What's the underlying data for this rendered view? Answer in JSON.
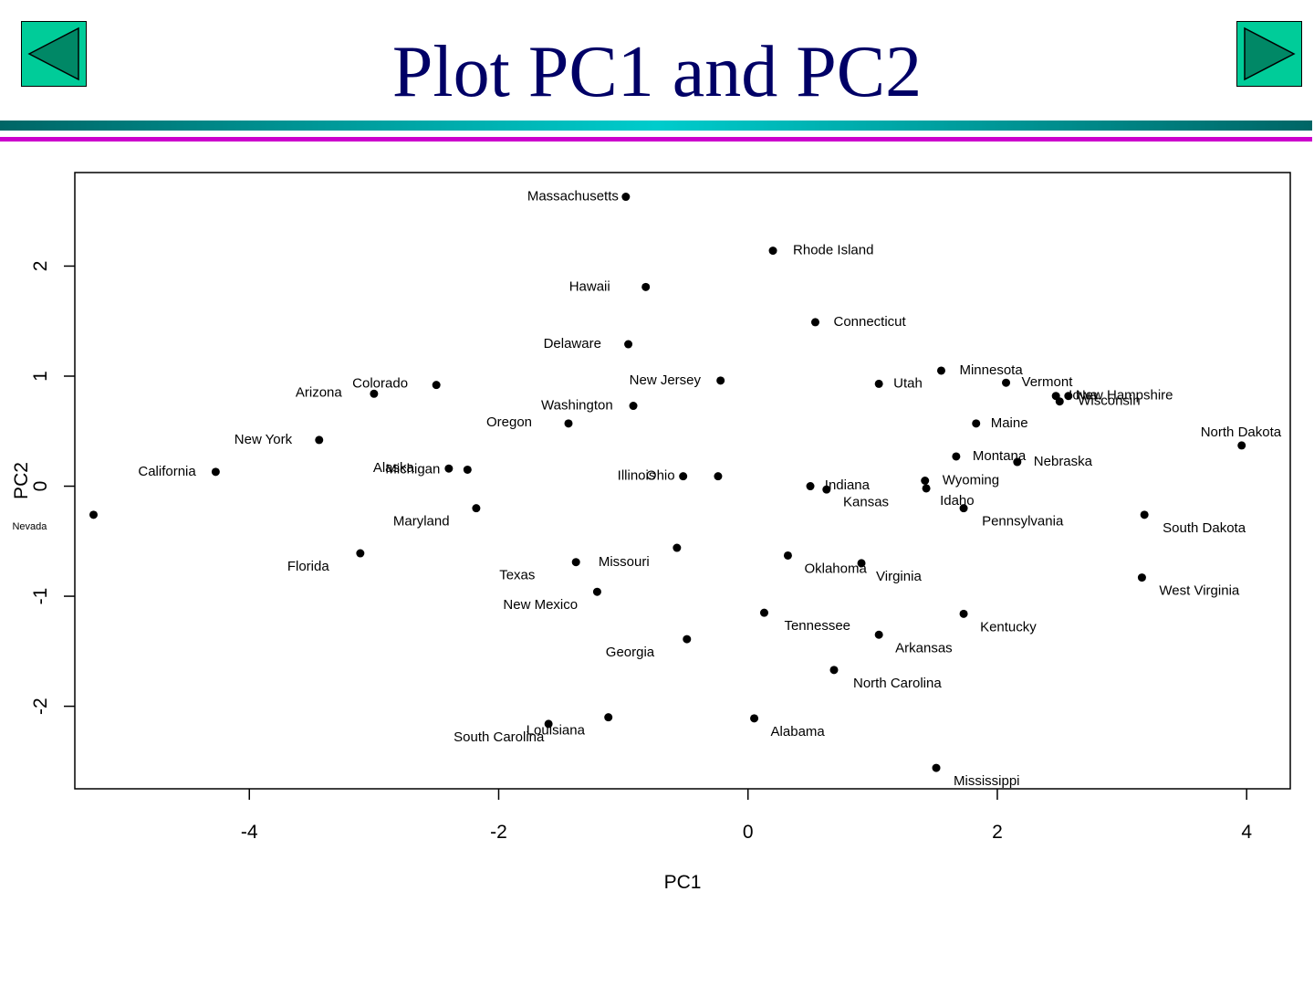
{
  "page": {
    "title": "Plot PC1 and PC2",
    "prev_icon": "triangle-left-icon",
    "next_icon": "triangle-right-icon",
    "colors": {
      "title": "#000066",
      "button_fill": "#00cc99",
      "arrow_fill": "#008866",
      "rule_teal": "#009999",
      "rule_magenta": "#cc00cc"
    }
  },
  "chart_data": {
    "type": "scatter",
    "xlabel": "PC1",
    "ylabel": "PC2",
    "xlim": [
      -5.4,
      4.35
    ],
    "ylim": [
      -2.75,
      2.85
    ],
    "xticks": [
      -4,
      -2,
      0,
      2,
      4
    ],
    "yticks": [
      -2,
      -1,
      0,
      1,
      2
    ],
    "xtick_labels": [
      "-4",
      "-2",
      "0",
      "2",
      "4"
    ],
    "ytick_labels": [
      "-2",
      "-1",
      "0",
      "1",
      "2"
    ],
    "grid": false,
    "points": [
      {
        "label": "Massachusetts",
        "x": -0.98,
        "y": 2.63
      },
      {
        "label": "Rhode Island",
        "x": 0.2,
        "y": 2.14
      },
      {
        "label": "Hawaii",
        "x": -0.82,
        "y": 1.81
      },
      {
        "label": "Connecticut",
        "x": 0.54,
        "y": 1.49
      },
      {
        "label": "Delaware",
        "x": -0.96,
        "y": 1.29
      },
      {
        "label": "Minnesota",
        "x": 1.55,
        "y": 1.05
      },
      {
        "label": "Vermont",
        "x": 2.07,
        "y": 0.94
      },
      {
        "label": "New Jersey",
        "x": -0.22,
        "y": 0.96
      },
      {
        "label": "Utah",
        "x": 1.05,
        "y": 0.93
      },
      {
        "label": "Colorado",
        "x": -2.5,
        "y": 0.92
      },
      {
        "label": "Arizona",
        "x": -3.0,
        "y": 0.84
      },
      {
        "label": "New Hampshire",
        "x": 2.57,
        "y": 0.82
      },
      {
        "label": "Iowa",
        "x": 2.47,
        "y": 0.82
      },
      {
        "label": "Wisconsin",
        "x": 2.5,
        "y": 0.77
      },
      {
        "label": "Washington",
        "x": -0.92,
        "y": 0.73
      },
      {
        "label": "Oregon",
        "x": -1.44,
        "y": 0.57
      },
      {
        "label": "Maine",
        "x": 1.83,
        "y": 0.57
      },
      {
        "label": "New York",
        "x": -3.44,
        "y": 0.42
      },
      {
        "label": "North Dakota",
        "x": 3.96,
        "y": 0.37
      },
      {
        "label": "Montana",
        "x": 1.67,
        "y": 0.27
      },
      {
        "label": "Nebraska",
        "x": 2.16,
        "y": 0.22
      },
      {
        "label": "California",
        "x": -4.27,
        "y": 0.13
      },
      {
        "label": "Alaska",
        "x": -2.4,
        "y": 0.16
      },
      {
        "label": "Michigan",
        "x": -2.25,
        "y": 0.15
      },
      {
        "label": "Illinois",
        "x": -0.52,
        "y": 0.09
      },
      {
        "label": "Ohio",
        "x": -0.24,
        "y": 0.09
      },
      {
        "label": "Indiana",
        "x": 0.63,
        "y": -0.03
      },
      {
        "label": "Kansas",
        "x": 0.5,
        "y": 0.0
      },
      {
        "label": "Wyoming",
        "x": 1.42,
        "y": 0.05
      },
      {
        "label": "Idaho",
        "x": 1.43,
        "y": -0.02
      },
      {
        "label": "Pennsylvania",
        "x": 1.73,
        "y": -0.2
      },
      {
        "label": "Maryland",
        "x": -2.18,
        "y": -0.2
      },
      {
        "label": "South Dakota",
        "x": 3.18,
        "y": -0.26
      },
      {
        "label": "Nevada",
        "x": -5.25,
        "y": -0.26
      },
      {
        "label": "Florida",
        "x": -3.11,
        "y": -0.61
      },
      {
        "label": "Missouri",
        "x": -0.57,
        "y": -0.56
      },
      {
        "label": "Oklahoma",
        "x": 0.32,
        "y": -0.63
      },
      {
        "label": "Virginia",
        "x": 0.91,
        "y": -0.7
      },
      {
        "label": "Texas",
        "x": -1.38,
        "y": -0.69
      },
      {
        "label": "West Virginia",
        "x": 3.16,
        "y": -0.83
      },
      {
        "label": "New Mexico",
        "x": -1.21,
        "y": -0.96
      },
      {
        "label": "Tennessee",
        "x": 0.13,
        "y": -1.15
      },
      {
        "label": "Kentucky",
        "x": 1.73,
        "y": -1.16
      },
      {
        "label": "Arkansas",
        "x": 1.05,
        "y": -1.35
      },
      {
        "label": "Georgia",
        "x": -0.49,
        "y": -1.39
      },
      {
        "label": "North Carolina",
        "x": 0.69,
        "y": -1.67
      },
      {
        "label": "Louisiana",
        "x": -1.12,
        "y": -2.1
      },
      {
        "label": "South Carolina",
        "x": -1.6,
        "y": -2.16
      },
      {
        "label": "Alabama",
        "x": 0.05,
        "y": -2.11
      },
      {
        "label": "Mississippi",
        "x": 1.51,
        "y": -2.56
      }
    ]
  }
}
